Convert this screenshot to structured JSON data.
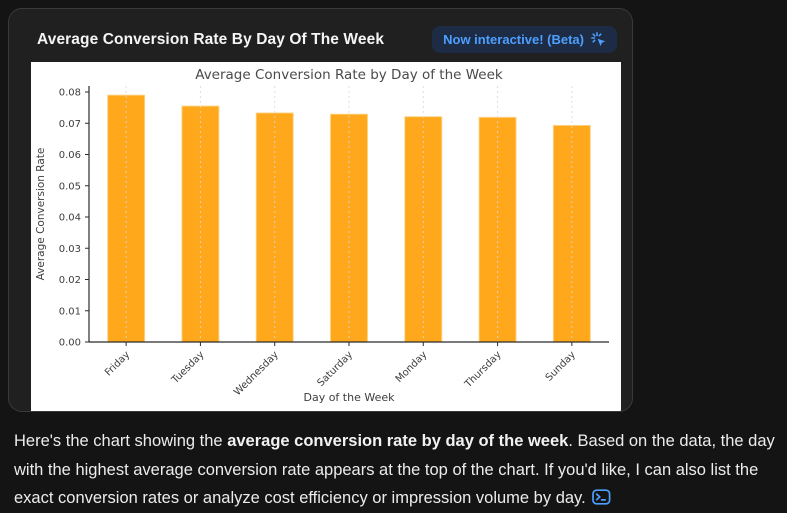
{
  "card": {
    "title": "Average Conversion Rate By Day Of The Week",
    "badge": {
      "label": "Now interactive! (Beta)",
      "icon": "cursor-click-icon",
      "text_color": "#4d9fff",
      "bg_color": "#1d2c44"
    }
  },
  "chart_data": {
    "type": "bar",
    "title": "Average Conversion Rate by Day of the Week",
    "xlabel": "Day of the Week",
    "ylabel": "Average Conversion Rate",
    "categories": [
      "Friday",
      "Tuesday",
      "Wednesday",
      "Saturday",
      "Monday",
      "Thursday",
      "Sunday"
    ],
    "values": [
      0.079,
      0.0755,
      0.0733,
      0.0729,
      0.0721,
      0.0719,
      0.0693
    ],
    "ylim": [
      0,
      0.08
    ],
    "yticks": [
      0,
      0.01,
      0.02,
      0.03,
      0.04,
      0.05,
      0.06,
      0.07,
      0.08
    ],
    "ytick_decimals": 2,
    "bar_color": "#FFA81C",
    "bar_edge_color": "#FBD489",
    "grid": "vertical-dashed",
    "grid_color": "#d7d7d7",
    "axis_text_color": "#3d3d3d",
    "title_color": "#4a4a4a",
    "background": "#ffffff",
    "legend": "none",
    "x_label_rotation": -45
  },
  "message": {
    "segments": [
      {
        "text": "Here's the chart showing the ",
        "bold": false
      },
      {
        "text": "average conversion rate by day of the week",
        "bold": true
      },
      {
        "text": ". Based on the data, the day with the highest average conversion rate appears at the top of the chart. If you'd like, I can also list the exact conversion rates or analyze cost efficiency or impression volume by day. ",
        "bold": false
      }
    ],
    "end_icon": "terminal-icon",
    "accent_color": "#4d9fff"
  }
}
